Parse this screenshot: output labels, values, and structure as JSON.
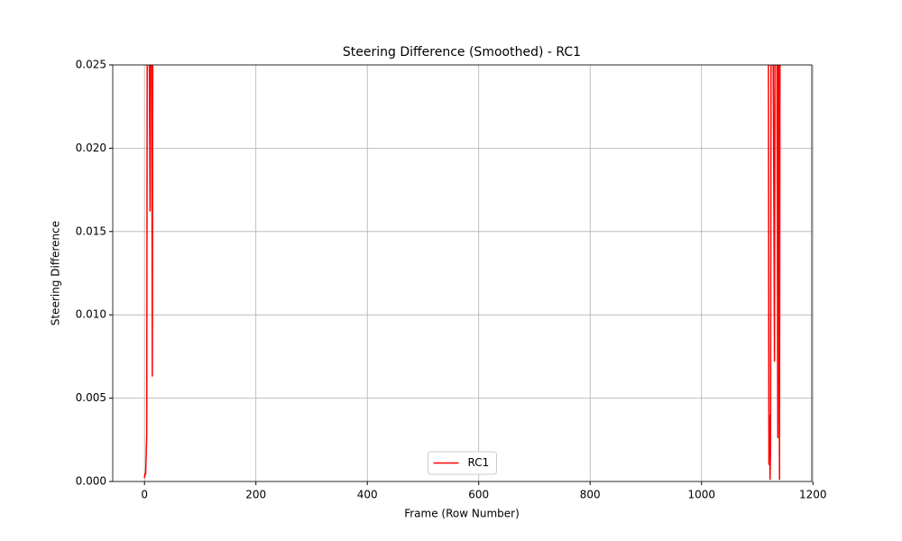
{
  "chart_data": {
    "type": "line",
    "title": "Steering Difference (Smoothed) - RC1",
    "x_label": "Frame (Row Number)",
    "y_label": "Steering Difference",
    "x": [
      0,
      1,
      2,
      3,
      4,
      5,
      8,
      10,
      11,
      13,
      14,
      15,
      null,
      1120,
      1121,
      1122,
      1123,
      1124,
      1125,
      1128,
      1130,
      1131,
      1132,
      1135,
      1137,
      1138,
      1140,
      1141
    ],
    "series": [
      {
        "name": "RC1",
        "color": "#ff0000",
        "values": [
          0.0002,
          0.0005,
          0.0004,
          0.0015,
          0.0028,
          0.03,
          0.03,
          0.0162,
          0.03,
          0.03,
          0.0063,
          0.03,
          null,
          0.03,
          0.001,
          0.004,
          0.0001,
          0.002,
          0.03,
          0.03,
          0.016,
          0.0072,
          0.03,
          0.03,
          0.0026,
          0.03,
          0.0001,
          0.03
        ]
      }
    ],
    "xlim": [
      -57,
      1198
    ],
    "xticks": [
      0,
      200,
      400,
      600,
      800,
      1000,
      1200
    ],
    "ylim": [
      0,
      0.025
    ],
    "yticks": [
      {
        "value": 0,
        "label": "0.000"
      },
      {
        "value": 0.005,
        "label": "0.005"
      },
      {
        "value": 0.01,
        "label": "0.010"
      },
      {
        "value": 0.015,
        "label": "0.015"
      },
      {
        "value": 0.02,
        "label": "0.020"
      },
      {
        "value": 0.025,
        "label": "0.025"
      }
    ],
    "grid": true,
    "legend": "lower center"
  }
}
